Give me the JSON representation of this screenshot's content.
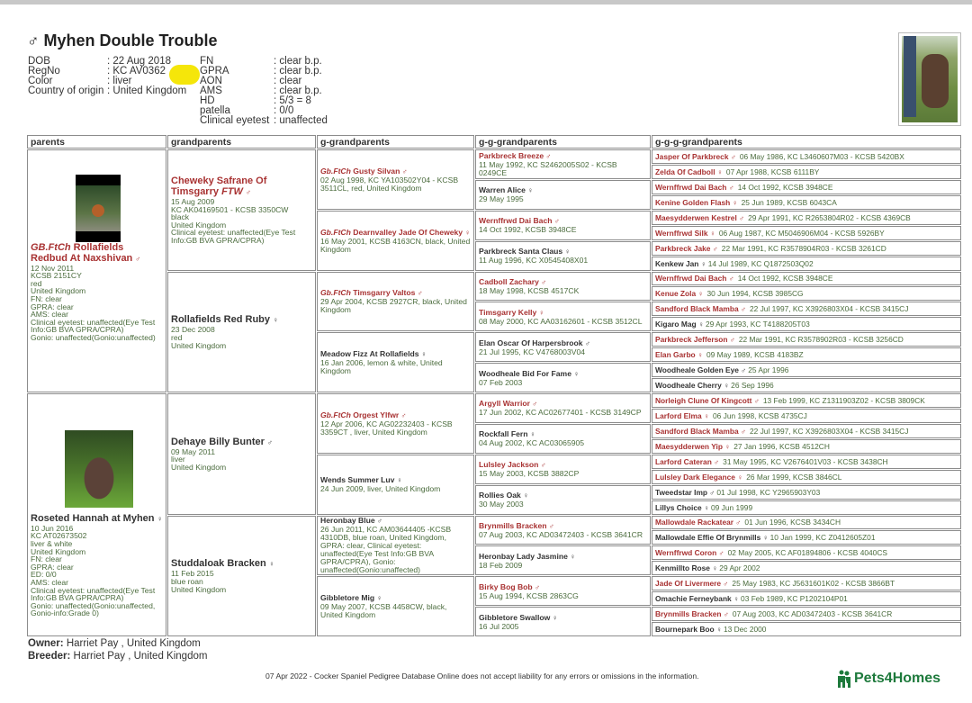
{
  "dog": {
    "sex_symbol": "♂",
    "name": "Myhen Double Trouble",
    "info_left": [
      {
        "label": "DOB",
        "value": ": 22 Aug 2018"
      },
      {
        "label": "RegNo",
        "value": ": KC AV0362"
      },
      {
        "label": "Color",
        "value": ": liver"
      },
      {
        "label": "Country of origin",
        "value": ": United Kingdom"
      }
    ],
    "info_right": [
      {
        "label": "FN",
        "value": ": clear b.p."
      },
      {
        "label": "GPRA",
        "value": ": clear b.p."
      },
      {
        "label": "AON",
        "value": ": clear"
      },
      {
        "label": "AMS",
        "value": ": clear b.p."
      },
      {
        "label": "HD",
        "value": ": 5/3 = 8"
      },
      {
        "label": "patella",
        "value": ": 0/0"
      },
      {
        "label": "Clinical eyetest",
        "value": ": unaffected"
      }
    ]
  },
  "columns": [
    "parents",
    "grandparents",
    "g-grandparents",
    "g-g-grandparents",
    "g-g-g-grandparents"
  ],
  "colors": {
    "highlight_name": "#a83232",
    "details": "#4a6b3c",
    "brand": "#1e7a3c"
  },
  "parents": [
    {
      "title": "GB.FtCh",
      "name": "Rollafields Redbud At Naxshivan",
      "sex": "♂",
      "highlight": true,
      "photo": "dog-photo",
      "details": [
        "12 Nov 2011",
        "KCSB 2151CY",
        "red",
        "United Kingdom",
        "FN: clear",
        "GPRA: clear",
        "AMS: clear",
        "Clinical eyetest: unaffected(Eye Test Info:GB BVA GPRA/CPRA)",
        "Gonio: unaffected(Gonio:unaffected)"
      ]
    },
    {
      "title": "",
      "name": "Roseted Hannah at Myhen",
      "sex": "♀",
      "highlight": false,
      "photo": "dog-photo",
      "details": [
        "10 Jun 2016",
        "KC AT02673502",
        "liver & white",
        "United Kingdom",
        "FN: clear",
        "GPRA: clear",
        "ED: 0/0",
        "AMS: clear",
        "Clinical eyetest: unaffected(Eye Test Info:GB BVA GPRA/CPRA)",
        "Gonio: unaffected(Gonio:unaffected, Gonio-info:Grade 0)"
      ]
    }
  ],
  "grandparents": [
    {
      "name": "Cheweky Safrane Of Timsgarry",
      "suffix": "FTW",
      "sex": "♂",
      "highlight": true,
      "details": [
        "15 Aug 2009",
        "KC AK04169501 - KCSB 3350CW",
        "black",
        "United Kingdom",
        "Clinical eyetest: unaffected(Eye Test Info:GB BVA GPRA/CPRA)"
      ]
    },
    {
      "name": "Rollafields Red Ruby",
      "sex": "♀",
      "highlight": false,
      "details": [
        "23 Dec 2008",
        "red",
        "United Kingdom"
      ]
    },
    {
      "name": "Dehaye Billy Bunter",
      "sex": "♂",
      "highlight": false,
      "details": [
        "09 May 2011",
        "liver",
        "United Kingdom"
      ]
    },
    {
      "name": "Studdaloak Bracken",
      "sex": "♀",
      "highlight": false,
      "details": [
        "11 Feb 2015",
        "blue roan",
        "United Kingdom"
      ]
    }
  ],
  "g_grandparents": [
    {
      "title": "Gb.FtCh",
      "name": "Gusty Silvan",
      "sex": "♂",
      "highlight": true,
      "details": "02 Aug 1998, KC YA103502Y04 - KCSB 3511CL, red, United Kingdom"
    },
    {
      "title": "Gb.FtCh",
      "name": "Dearnvalley Jade Of Cheweky",
      "sex": "♀",
      "highlight": true,
      "details": "16 May 2001, KCSB 4163CN, black, United Kingdom"
    },
    {
      "title": "Gb.FtCh",
      "name": "Timsgarry Valtos",
      "sex": "♂",
      "highlight": true,
      "details": "29 Apr 2004, KCSB 2927CR, black, United Kingdom"
    },
    {
      "title": "",
      "name": "Meadow Fizz At Rollafields",
      "sex": "♀",
      "highlight": false,
      "details": "16 Jan 2006, lemon & white, United Kingdom"
    },
    {
      "title": "Gb.FtCh",
      "name": "Orgest Ylfwr",
      "sex": "♂",
      "highlight": true,
      "details": "12 Apr 2006, KC AG02232403 - KCSB 3359CT , liver, United Kingdom"
    },
    {
      "title": "",
      "name": "Wends Summer Luv",
      "sex": "♀",
      "highlight": false,
      "details": "24 Jun 2009, liver, United Kingdom"
    },
    {
      "title": "",
      "name": "Heronbay Blue",
      "sex": "♂",
      "highlight": false,
      "details": "26 Jun 2011, KC AM03644405 -KCSB 4310DB, blue roan, United Kingdom, GPRA: clear, Clinical eyetest: unaffected(Eye Test Info:GB BVA GPRA/CPRA), Gonio: unaffected(Gonio:unaffected)"
    },
    {
      "title": "",
      "name": "Gibbletore Mig",
      "sex": "♀",
      "highlight": false,
      "details": "09 May 2007, KCSB 4458CW, black, United Kingdom"
    }
  ],
  "g_g_grandparents": [
    {
      "name": "Parkbreck Breeze",
      "sex": "♂",
      "highlight": true,
      "details": "11 May 1992, KC S2462005S02 - KCSB 0249CE"
    },
    {
      "name": "Warren Alice",
      "sex": "♀",
      "highlight": false,
      "details": "29 May 1995"
    },
    {
      "name": "Wernffrwd Dai Bach",
      "sex": "♂",
      "highlight": true,
      "details": "14 Oct 1992, KCSB 3948CE"
    },
    {
      "name": "Parkbreck Santa Claus",
      "sex": "♀",
      "highlight": false,
      "details": "11 Aug 1996, KC X0545408X01"
    },
    {
      "name": "Cadboll Zachary",
      "sex": "♂",
      "highlight": true,
      "details": "18 May 1998, KCSB 4517CK"
    },
    {
      "name": "Timsgarry Kelly",
      "sex": "♀",
      "highlight": true,
      "details": "08 May 2000, KC AA03162601 - KCSB 3512CL"
    },
    {
      "name": "Elan Oscar Of Harpersbrook",
      "sex": "♂",
      "highlight": false,
      "details": "21 Jul 1995, KC V4768003V04"
    },
    {
      "name": "Woodheale Bid For Fame",
      "sex": "♀",
      "highlight": false,
      "details": "07 Feb 2003"
    },
    {
      "name": "Argyll Warrior",
      "sex": "♂",
      "highlight": true,
      "details": "17 Jun 2002, KC AC02677401 - KCSB 3149CP"
    },
    {
      "name": "Rockfall Fern",
      "sex": "♀",
      "highlight": false,
      "details": "04 Aug 2002, KC AC03065905"
    },
    {
      "name": "Lulsley Jackson",
      "sex": "♂",
      "highlight": true,
      "details": "15 May 2003, KCSB 3882CP"
    },
    {
      "name": "Rollies Oak",
      "sex": "♀",
      "highlight": false,
      "details": "30 May 2003"
    },
    {
      "name": "Brynmills Bracken",
      "sex": "♂",
      "highlight": true,
      "details": "07 Aug 2003, KC AD03472403 - KCSB 3641CR"
    },
    {
      "name": "Heronbay Lady Jasmine",
      "sex": "♀",
      "highlight": false,
      "details": "18 Feb 2009"
    },
    {
      "name": "Birky Bog Bob",
      "sex": "♂",
      "highlight": true,
      "details": "15 Aug 1994, KCSB 2863CG"
    },
    {
      "name": "Gibbletore Swallow",
      "sex": "♀",
      "highlight": false,
      "details": "16 Jul 2005"
    }
  ],
  "g_g_g_grandparents": [
    {
      "name": "Jasper Of Parkbreck",
      "sex": "♂",
      "highlight": true,
      "details": "06 May 1986, KC L3460607M03 - KCSB 5420BX"
    },
    {
      "name": "Zelda Of Cadboll",
      "sex": "♀",
      "highlight": true,
      "details": "07 Apr 1988, KCSB 6111BY"
    },
    {
      "name": "Wernffrwd Dai Bach",
      "sex": "♂",
      "highlight": true,
      "details": "14 Oct 1992, KCSB 3948CE"
    },
    {
      "name": "Kenine Golden Flash",
      "sex": "♀",
      "highlight": true,
      "details": "25 Jun 1989, KCSB 6043CA"
    },
    {
      "name": "Maesydderwen Kestrel",
      "sex": "♂",
      "highlight": true,
      "details": "29 Apr 1991, KC R2653804R02 - KCSB 4369CB"
    },
    {
      "name": "Wernffrwd Silk",
      "sex": "♀",
      "highlight": true,
      "details": "06 Aug 1987, KC M5046906M04 - KCSB 5926BY"
    },
    {
      "name": "Parkbreck Jake",
      "sex": "♂",
      "highlight": true,
      "details": "22 Mar 1991, KC R3578904R03 - KCSB 3261CD"
    },
    {
      "name": "Kenkew Jan",
      "sex": "♀",
      "highlight": false,
      "details": "14 Jul 1989, KC Q1872503Q02"
    },
    {
      "name": "Wernffrwd Dai Bach",
      "sex": "♂",
      "highlight": true,
      "details": "14 Oct 1992, KCSB 3948CE"
    },
    {
      "name": "Kenue Zola",
      "sex": "♀",
      "highlight": true,
      "details": "30 Jun 1994, KCSB 3985CG"
    },
    {
      "name": "Sandford Black Mamba",
      "sex": "♂",
      "highlight": true,
      "details": "22 Jul 1997, KC X3926803X04 - KCSB 3415CJ"
    },
    {
      "name": "Kigaro Mag",
      "sex": "♀",
      "highlight": false,
      "details": "29 Apr 1993, KC T4188205T03"
    },
    {
      "name": "Parkbreck Jefferson",
      "sex": "♂",
      "highlight": true,
      "details": "22 Mar 1991, KC R3578902R03 - KCSB 3256CD"
    },
    {
      "name": "Elan Garbo",
      "sex": "♀",
      "highlight": true,
      "details": "09 May 1989, KCSB 4183BZ"
    },
    {
      "name": "Woodheale Golden Eye",
      "sex": "♂",
      "highlight": false,
      "details": "25 Apr 1996"
    },
    {
      "name": "Woodheale Cherry",
      "sex": "♀",
      "highlight": false,
      "details": "26 Sep 1996"
    },
    {
      "name": "Norleigh Clune Of Kingcott",
      "sex": "♂",
      "highlight": true,
      "details": "13 Feb 1999, KC Z1311903Z02 - KCSB 3809CK"
    },
    {
      "name": "Larford Elma",
      "sex": "♀",
      "highlight": true,
      "details": "06 Jun 1998, KCSB 4735CJ"
    },
    {
      "name": "Sandford Black Mamba",
      "sex": "♂",
      "highlight": true,
      "details": "22 Jul 1997, KC X3926803X04 - KCSB 3415CJ"
    },
    {
      "name": "Maesydderwen Yip",
      "sex": "♀",
      "highlight": true,
      "details": "27 Jan 1996, KCSB 4512CH"
    },
    {
      "name": "Larford Cateran",
      "sex": "♂",
      "highlight": true,
      "details": "31 May 1995, KC V2676401V03 - KCSB 3438CH"
    },
    {
      "name": "Lulsley Dark Elegance",
      "sex": "♀",
      "highlight": true,
      "details": "26 Mar 1999, KCSB 3846CL"
    },
    {
      "name": "Tweedstar Imp",
      "sex": "♂",
      "highlight": false,
      "details": "01 Jul 1998, KC Y2965903Y03"
    },
    {
      "name": "Lillys Choice",
      "sex": "♀",
      "highlight": false,
      "details": "09 Jun 1999"
    },
    {
      "name": "Mallowdale Rackatear",
      "sex": "♂",
      "highlight": true,
      "details": "01 Jun 1996, KCSB 3434CH"
    },
    {
      "name": "Mallowdale Effie Of Brynmills",
      "sex": "♀",
      "highlight": false,
      "details": "10 Jan 1999, KC Z0412605Z01"
    },
    {
      "name": "Wernffrwd Coron",
      "sex": "♂",
      "highlight": true,
      "details": "02 May 2005, KC AF01894806 - KCSB 4040CS"
    },
    {
      "name": "Kenmillto Rose",
      "sex": "♀",
      "highlight": false,
      "details": "29 Apr 2002"
    },
    {
      "name": "Jade Of Livermere",
      "sex": "♂",
      "highlight": true,
      "details": "25 May 1983, KC J5631601K02 - KCSB 3866BT"
    },
    {
      "name": "Omachie Ferneybank",
      "sex": "♀",
      "highlight": false,
      "details": "03 Feb 1989, KC P1202104P01"
    },
    {
      "name": "Brynmills Bracken",
      "sex": "♂",
      "highlight": true,
      "details": "07 Aug 2003, KC AD03472403 - KCSB 3641CR"
    },
    {
      "name": "Bournepark Boo",
      "sex": "♀",
      "highlight": false,
      "details": "13 Dec 2000"
    }
  ],
  "owner": {
    "label": "Owner:",
    "value": " Harriet Pay , United Kingdom"
  },
  "breeder": {
    "label": "Breeder:",
    "value": " Harriet Pay , United Kingdom"
  },
  "footer": "07 Apr 2022 - Cocker Spaniel Pedigree Database Online does not accept liability for any errors or omissions in the information.",
  "logo": "Pets4Homes"
}
